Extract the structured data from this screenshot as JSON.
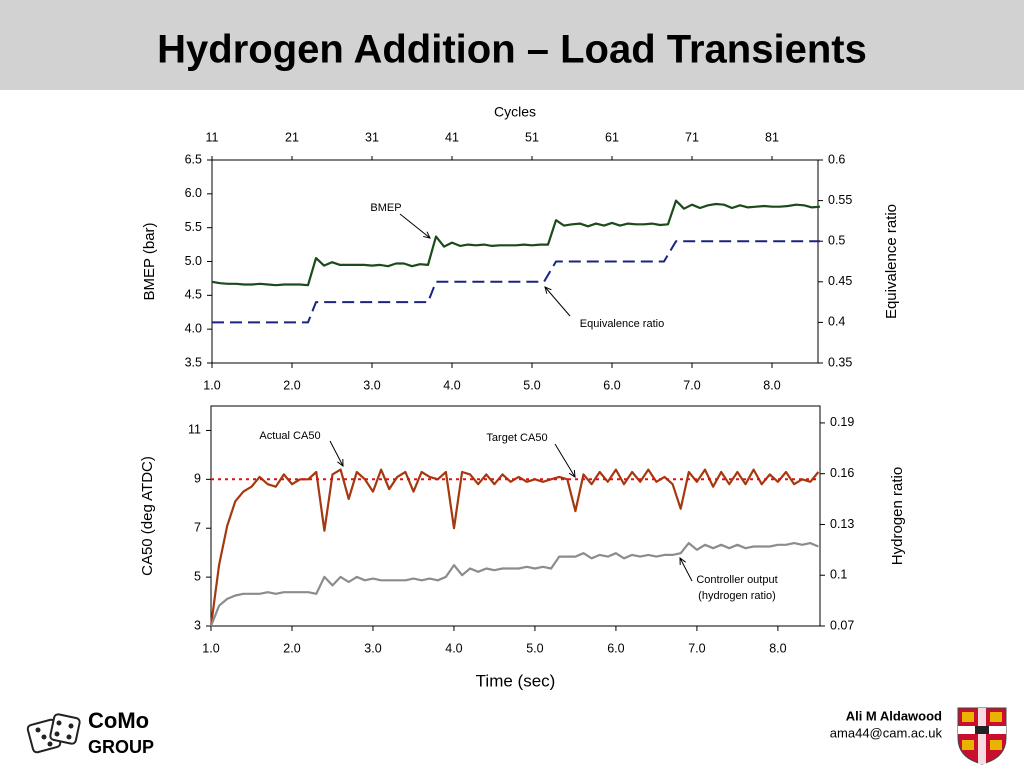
{
  "header": {
    "title": "Hydrogen Addition – Load Transients"
  },
  "footer": {
    "author": "Ali M Aldawood",
    "email": "ama44@cam.ac.uk",
    "logo_top": "CoMo",
    "logo_bottom": "GROUP"
  },
  "chart_data": [
    {
      "type": "line",
      "x_top_label": "Cycles",
      "ylabel": "BMEP (bar)",
      "y2label": "Equivalence ratio",
      "x": [
        1,
        1.1,
        1.2,
        1.3,
        1.4,
        1.5,
        1.6,
        1.7,
        1.8,
        1.9,
        2,
        2.1,
        2.2,
        2.3,
        2.4,
        2.5,
        2.6,
        2.7,
        2.8,
        2.9,
        3,
        3.1,
        3.2,
        3.3,
        3.4,
        3.5,
        3.6,
        3.7,
        3.8,
        3.9,
        4,
        4.1,
        4.2,
        4.3,
        4.4,
        4.5,
        4.6,
        4.7,
        4.8,
        4.9,
        5,
        5.1,
        5.2,
        5.3,
        5.4,
        5.5,
        5.6,
        5.7,
        5.8,
        5.9,
        6,
        6.1,
        6.2,
        6.3,
        6.4,
        6.5,
        6.6,
        6.7,
        6.8,
        6.9,
        7,
        7.1,
        7.2,
        7.3,
        7.4,
        7.5,
        7.6,
        7.7,
        7.8,
        7.9,
        8,
        8.1,
        8.2,
        8.3,
        8.4,
        8.5,
        8.6
      ],
      "xlim": [
        1,
        8.575
      ],
      "xticks": [
        {
          "value": 1,
          "label": "1.0"
        },
        {
          "value": 2,
          "label": "2.0"
        },
        {
          "value": 3,
          "label": "3.0"
        },
        {
          "value": 4,
          "label": "4.0"
        },
        {
          "value": 5,
          "label": "5.0"
        },
        {
          "value": 6,
          "label": "6.0"
        },
        {
          "value": 7,
          "label": "7.0"
        },
        {
          "value": 8,
          "label": "8.0"
        }
      ],
      "x2lim": [
        11,
        86.75
      ],
      "x2ticks": [
        11,
        21,
        31,
        41,
        51,
        61,
        71,
        81
      ],
      "ylim": [
        3.5,
        6.5
      ],
      "yticks": [
        3.5,
        {
          "value": 4,
          "label": "4.0"
        },
        4.5,
        {
          "value": 5,
          "label": "5.0"
        },
        5.5,
        {
          "value": 6,
          "label": "6.0"
        },
        6.5
      ],
      "y2lim": [
        0.35,
        0.6
      ],
      "y2ticks": [
        0.35,
        0.4,
        0.45,
        0.5,
        0.55,
        0.6
      ],
      "series": [
        {
          "name": "BMEP",
          "color": "#1b4a1b",
          "style": "solid",
          "values": [
            4.7,
            4.68,
            4.67,
            4.67,
            4.66,
            4.66,
            4.67,
            4.66,
            4.65,
            4.66,
            4.66,
            4.66,
            4.65,
            5.05,
            4.94,
            4.99,
            4.95,
            4.95,
            4.95,
            4.95,
            4.94,
            4.95,
            4.93,
            4.97,
            4.97,
            4.93,
            4.96,
            4.95,
            5.37,
            5.22,
            5.28,
            5.23,
            5.25,
            5.24,
            5.25,
            5.23,
            5.24,
            5.24,
            5.24,
            5.25,
            5.24,
            5.25,
            5.25,
            5.61,
            5.53,
            5.55,
            5.56,
            5.52,
            5.56,
            5.53,
            5.57,
            5.53,
            5.56,
            5.55,
            5.55,
            5.56,
            5.54,
            5.55,
            5.9,
            5.78,
            5.84,
            5.79,
            5.83,
            5.85,
            5.84,
            5.79,
            5.83,
            5.8,
            5.81,
            5.82,
            5.81,
            5.81,
            5.82,
            5.84,
            5.83,
            5.8,
            5.81
          ]
        },
        {
          "name": "Equivalence ratio",
          "color": "#1a237e",
          "style": "dashed",
          "axis": "y2",
          "x": [
            1,
            2.2,
            2.3,
            3.7,
            3.8,
            5.15,
            5.3,
            6.65,
            6.8,
            8.6
          ],
          "values": [
            0.4,
            0.4,
            0.425,
            0.425,
            0.45,
            0.45,
            0.475,
            0.475,
            0.5,
            0.5
          ]
        }
      ]
    },
    {
      "type": "line",
      "xlabel": "Time (sec)",
      "ylabel": "CA50 (deg ATDC)",
      "y2label": "Hydrogen ratio",
      "annotations": [
        "(hydrogen ratio)"
      ],
      "x": [
        1,
        1.1,
        1.2,
        1.3,
        1.4,
        1.5,
        1.6,
        1.7,
        1.8,
        1.9,
        2,
        2.1,
        2.2,
        2.3,
        2.4,
        2.5,
        2.6,
        2.7,
        2.8,
        2.9,
        3,
        3.1,
        3.2,
        3.3,
        3.4,
        3.5,
        3.6,
        3.7,
        3.8,
        3.9,
        4,
        4.1,
        4.2,
        4.3,
        4.4,
        4.5,
        4.6,
        4.7,
        4.8,
        4.9,
        5,
        5.1,
        5.2,
        5.3,
        5.4,
        5.5,
        5.6,
        5.7,
        5.8,
        5.9,
        6,
        6.1,
        6.2,
        6.3,
        6.4,
        6.5,
        6.6,
        6.7,
        6.8,
        6.9,
        7,
        7.1,
        7.2,
        7.3,
        7.4,
        7.5,
        7.6,
        7.7,
        7.8,
        7.9,
        8,
        8.1,
        8.2,
        8.3,
        8.4,
        8.5
      ],
      "xlim": [
        1,
        8.52
      ],
      "xticks": [
        {
          "value": 1,
          "label": "1.0"
        },
        {
          "value": 2,
          "label": "2.0"
        },
        {
          "value": 3,
          "label": "3.0"
        },
        {
          "value": 4,
          "label": "4.0"
        },
        {
          "value": 5,
          "label": "5.0"
        },
        {
          "value": 6,
          "label": "6.0"
        },
        {
          "value": 7,
          "label": "7.0"
        },
        {
          "value": 8,
          "label": "8.0"
        }
      ],
      "ylim": [
        3,
        12
      ],
      "yticks": [
        3,
        5,
        7,
        9,
        11
      ],
      "y2lim": [
        0.07,
        0.2
      ],
      "y2ticks": [
        0.07,
        0.1,
        0.13,
        0.16,
        0.19
      ],
      "series": [
        {
          "name": "Actual CA50",
          "color": "#a5380f",
          "style": "solid",
          "values": [
            3,
            5.5,
            7.1,
            8.1,
            8.5,
            8.7,
            9.1,
            8.8,
            8.7,
            9.2,
            8.8,
            9,
            9,
            9.3,
            6.9,
            9.2,
            9.4,
            8.2,
            9.3,
            9,
            8.5,
            9.4,
            8.6,
            9.1,
            9.3,
            8.5,
            9.3,
            9.1,
            9,
            9.3,
            7,
            9.3,
            9.2,
            8.8,
            9.2,
            8.8,
            9.2,
            8.9,
            9.1,
            8.9,
            9,
            8.9,
            9,
            9.1,
            9,
            7.7,
            9.2,
            8.8,
            9.3,
            8.9,
            9.4,
            8.8,
            9.3,
            8.9,
            9.4,
            8.9,
            9.1,
            8.8,
            7.8,
            9.3,
            8.9,
            9.4,
            8.7,
            9.3,
            8.8,
            9.3,
            8.8,
            9.4,
            8.8,
            9.2,
            8.9,
            9.3,
            8.8,
            9,
            8.9,
            9.3
          ]
        },
        {
          "name": "Target CA50",
          "color": "#e01010",
          "style": "dotted",
          "x": [
            1,
            8.52
          ],
          "values": [
            9,
            9
          ]
        },
        {
          "name": "Controller output",
          "color": "#8c8c8c",
          "style": "solid",
          "axis": "y2",
          "values": [
            0.07,
            0.082,
            0.086,
            0.088,
            0.089,
            0.089,
            0.089,
            0.09,
            0.089,
            0.09,
            0.09,
            0.09,
            0.09,
            0.089,
            0.099,
            0.094,
            0.099,
            0.096,
            0.099,
            0.097,
            0.098,
            0.097,
            0.097,
            0.097,
            0.097,
            0.098,
            0.097,
            0.098,
            0.097,
            0.099,
            0.106,
            0.1,
            0.104,
            0.102,
            0.104,
            0.103,
            0.104,
            0.104,
            0.104,
            0.105,
            0.104,
            0.105,
            0.104,
            0.111,
            0.111,
            0.111,
            0.113,
            0.11,
            0.112,
            0.111,
            0.113,
            0.11,
            0.112,
            0.111,
            0.112,
            0.111,
            0.112,
            0.112,
            0.113,
            0.119,
            0.115,
            0.118,
            0.116,
            0.118,
            0.116,
            0.118,
            0.116,
            0.117,
            0.117,
            0.117,
            0.118,
            0.118,
            0.119,
            0.118,
            0.119,
            0.117
          ]
        }
      ]
    }
  ]
}
